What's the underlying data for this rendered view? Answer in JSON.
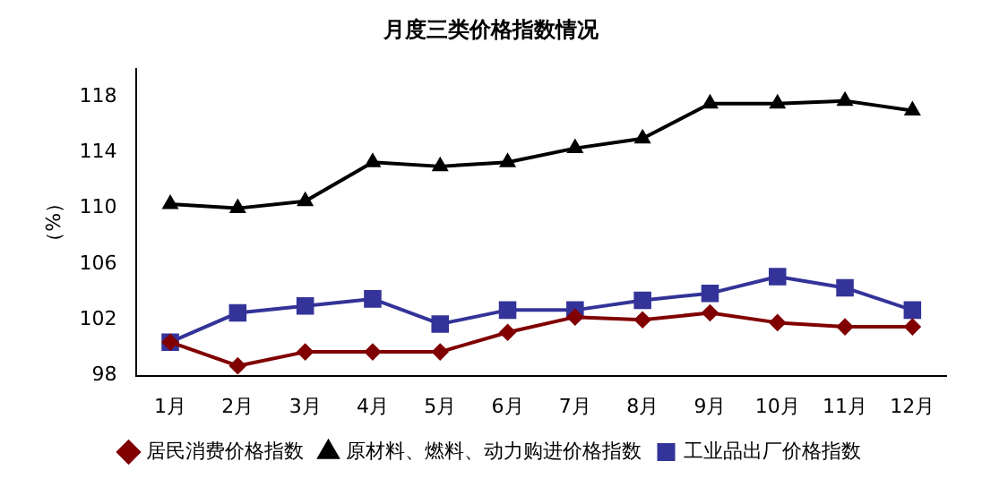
{
  "chart_data": {
    "type": "line",
    "title": "月度三类价格指数情况",
    "ylabel": "（%）",
    "categories": [
      "1月",
      "2月",
      "3月",
      "4月",
      "5月",
      "6月",
      "7月",
      "8月",
      "9月",
      "10月",
      "11月",
      "12月"
    ],
    "series": [
      {
        "name": "居民消费价格指数",
        "color": "#800000",
        "marker": "diamond",
        "values": [
          100.4,
          98.7,
          99.7,
          99.7,
          99.7,
          101.1,
          102.2,
          102.0,
          102.5,
          101.8,
          101.5,
          101.5
        ]
      },
      {
        "name": "原材料、燃料、动力购进价格指数",
        "color": "#000000",
        "marker": "triangle",
        "values": [
          110.3,
          110.0,
          110.5,
          113.3,
          113.0,
          113.3,
          114.3,
          115.0,
          117.5,
          117.5,
          117.7,
          117.0
        ]
      },
      {
        "name": "工业品出厂价格指数",
        "color": "#333399",
        "marker": "square",
        "values": [
          100.4,
          102.5,
          103.0,
          103.5,
          101.7,
          102.7,
          102.7,
          103.4,
          103.9,
          105.1,
          104.3,
          102.7
        ]
      }
    ],
    "ylim": [
      98,
      120
    ],
    "yticks": [
      98,
      102,
      106,
      110,
      114,
      118
    ],
    "grid": false,
    "legend": "bottom"
  }
}
